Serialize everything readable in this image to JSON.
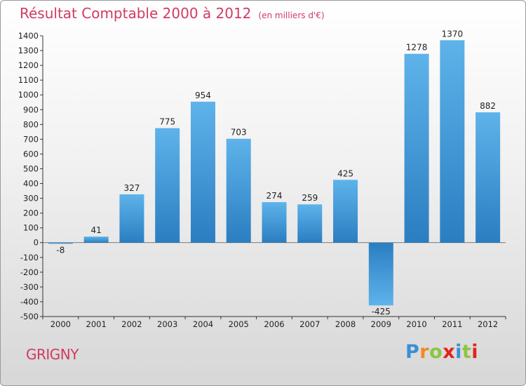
{
  "title": "Résultat Comptable 2000 à 2012",
  "subtitle": "(en milliers d'€)",
  "commune": "GRIGNY",
  "brand": {
    "letters": [
      "P",
      "r",
      "o",
      "x",
      "i",
      "t",
      "i"
    ],
    "colors": [
      "#3b8fd6",
      "#f08a1d",
      "#8cc63f",
      "#e2231a",
      "#3b8fd6",
      "#8cc63f",
      "#e2231a"
    ]
  },
  "chart_data": {
    "type": "bar",
    "title": "Résultat Comptable 2000 à 2012",
    "ylabel": "en milliers d'€",
    "xlabel": "",
    "ylim": [
      -500,
      1400
    ],
    "ytick_step": 100,
    "grid": false,
    "categories": [
      "2000",
      "2001",
      "2002",
      "2003",
      "2004",
      "2005",
      "2006",
      "2007",
      "2008",
      "2009",
      "2010",
      "2011",
      "2012"
    ],
    "values": [
      -8,
      41,
      327,
      775,
      954,
      703,
      274,
      259,
      425,
      -425,
      1278,
      1370,
      882
    ],
    "bar_color_light": "#5fb3ea",
    "bar_color_dark": "#2a7ec1"
  }
}
